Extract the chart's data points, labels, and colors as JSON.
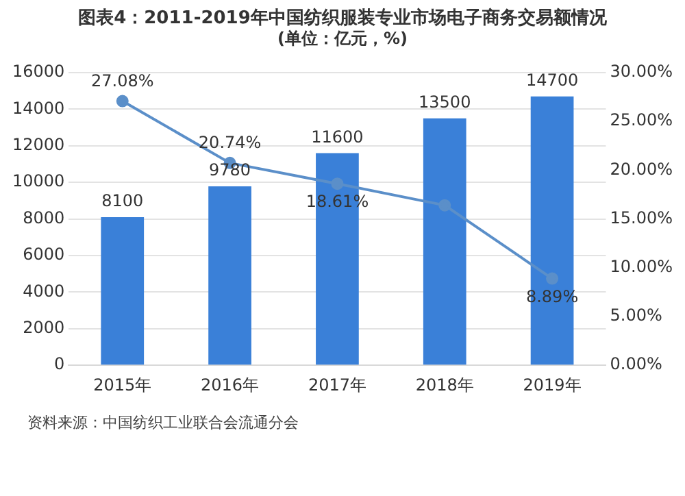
{
  "chart_data": {
    "type": "bar",
    "title": "图表4：2011-2019年中国纺织服装专业市场电子商务交易额情况",
    "subtitle": "(单位：亿元，%)",
    "categories": [
      "2015年",
      "2016年",
      "2017年",
      "2018年",
      "2019年"
    ],
    "series": [
      {
        "color": "#3a80d8",
        "values": [
          8100,
          9780,
          11600,
          13500,
          14700
        ],
        "value_labels": [
          "8100",
          "9780",
          "11600",
          "13500",
          "14700"
        ]
      },
      {
        "type": "line",
        "axis": "y2",
        "color": "#5b8fc9",
        "values": [
          27.08,
          20.74,
          18.61,
          16.4,
          8.89
        ],
        "value_labels": [
          "27.08%",
          "20.74%",
          "18.61%",
          null,
          "8.89%"
        ]
      }
    ],
    "ylim": [
      0,
      16000
    ],
    "yticks": [
      0,
      2000,
      4000,
      6000,
      8000,
      10000,
      12000,
      14000,
      16000
    ],
    "y2lim": [
      0,
      30
    ],
    "y2ticks": [
      {
        "value": 0,
        "label": "0.00%"
      },
      {
        "value": 5,
        "label": "5.00%"
      },
      {
        "value": 10,
        "label": "10.00%"
      },
      {
        "value": 15,
        "label": "15.00%"
      },
      {
        "value": 20,
        "label": "20.00%"
      },
      {
        "value": 25,
        "label": "25.00%"
      },
      {
        "value": 30,
        "label": "30.00%"
      }
    ],
    "grid": "y",
    "legend": false,
    "marker": "circle",
    "annotations": [
      "资料来源：中国纺织工业联合会流通分会"
    ]
  }
}
